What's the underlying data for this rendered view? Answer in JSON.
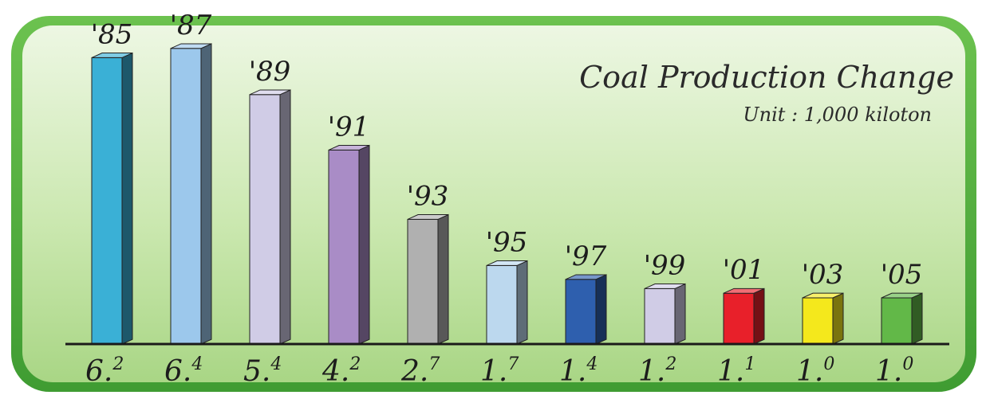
{
  "chart_data": {
    "type": "bar",
    "title": "Coal Production Change",
    "subtitle": "Unit : 1,000 kiloton",
    "categories": [
      "'85",
      "'87",
      "'89",
      "'91",
      "'93",
      "'95",
      "'97",
      "'99",
      "'01",
      "'03",
      "'05"
    ],
    "values": [
      6.2,
      6.4,
      5.4,
      4.2,
      2.7,
      1.7,
      1.4,
      1.2,
      1.1,
      1.0,
      1.0
    ],
    "value_labels": [
      {
        "main": "6.",
        "sup": "2"
      },
      {
        "main": "6.",
        "sup": "4"
      },
      {
        "main": "5.",
        "sup": "4"
      },
      {
        "main": "4.",
        "sup": "2"
      },
      {
        "main": "2.",
        "sup": "7"
      },
      {
        "main": "1.",
        "sup": "7"
      },
      {
        "main": "1.",
        "sup": "4"
      },
      {
        "main": "1.",
        "sup": "2"
      },
      {
        "main": "1.",
        "sup": "1"
      },
      {
        "main": "1.",
        "sup": "0"
      },
      {
        "main": "1.",
        "sup": "0"
      }
    ],
    "colors": [
      "#3ab0d6",
      "#9cc8ec",
      "#d0cce6",
      "#a98cc6",
      "#b0b0b0",
      "#bcd8ee",
      "#2e5fae",
      "#d0cce6",
      "#e8202a",
      "#f4e81c",
      "#62b848"
    ],
    "frame_color": "#4caf3c",
    "panel_gradient": [
      "#e9f5df",
      "#b3dc8f"
    ],
    "grid": false,
    "legend": "none"
  }
}
